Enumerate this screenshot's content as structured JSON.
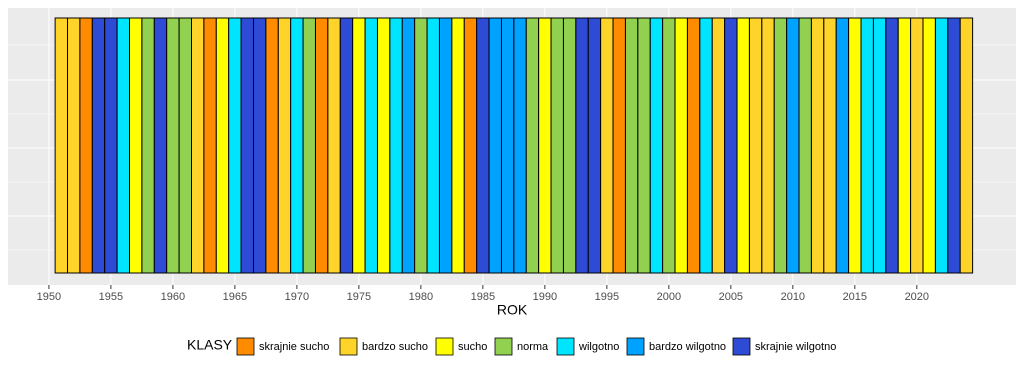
{
  "chart_data": {
    "type": "stripes",
    "xlabel": "ROK",
    "x": [
      1951,
      1952,
      1953,
      1954,
      1955,
      1956,
      1957,
      1958,
      1959,
      1960,
      1961,
      1962,
      1963,
      1964,
      1965,
      1966,
      1967,
      1968,
      1969,
      1970,
      1971,
      1972,
      1973,
      1974,
      1975,
      1976,
      1977,
      1978,
      1979,
      1980,
      1981,
      1982,
      1983,
      1984,
      1985,
      1986,
      1987,
      1988,
      1989,
      1990,
      1991,
      1992,
      1993,
      1994,
      1995,
      1996,
      1997,
      1998,
      1999,
      2000,
      2001,
      2002,
      2003,
      2004,
      2005,
      2006,
      2007,
      2008,
      2009,
      2010,
      2011,
      2012,
      2013,
      2014,
      2015,
      2016,
      2017,
      2018,
      2019,
      2020,
      2021,
      2022,
      2023,
      2024
    ],
    "classes": [
      "bardzo sucho",
      "bardzo sucho",
      "skrajnie sucho",
      "skrajnie wilgotno",
      "skrajnie wilgotno",
      "wilgotno",
      "sucho",
      "norma",
      "skrajnie wilgotno",
      "norma",
      "norma",
      "bardzo sucho",
      "skrajnie sucho",
      "sucho",
      "wilgotno",
      "skrajnie wilgotno",
      "skrajnie wilgotno",
      "skrajnie sucho",
      "bardzo sucho",
      "wilgotno",
      "norma",
      "skrajnie sucho",
      "bardzo sucho",
      "skrajnie wilgotno",
      "sucho",
      "wilgotno",
      "sucho",
      "wilgotno",
      "bardzo wilgotno",
      "norma",
      "wilgotno",
      "bardzo wilgotno",
      "sucho",
      "skrajnie sucho",
      "skrajnie wilgotno",
      "bardzo wilgotno",
      "bardzo wilgotno",
      "bardzo wilgotno",
      "norma",
      "sucho",
      "norma",
      "norma",
      "skrajnie wilgotno",
      "skrajnie wilgotno",
      "bardzo sucho",
      "skrajnie sucho",
      "norma",
      "norma",
      "wilgotno",
      "norma",
      "sucho",
      "skrajnie sucho",
      "wilgotno",
      "bardzo sucho",
      "skrajnie wilgotno",
      "sucho",
      "bardzo sucho",
      "bardzo sucho",
      "norma",
      "bardzo wilgotno",
      "norma",
      "bardzo sucho",
      "bardzo sucho",
      "bardzo wilgotno",
      "sucho",
      "wilgotno",
      "wilgotno",
      "skrajnie wilgotno",
      "sucho",
      "bardzo sucho",
      "sucho",
      "wilgotno",
      "skrajnie wilgotno",
      "bardzo sucho"
    ],
    "xlim": [
      1946.7,
      2028
    ],
    "xticks": [
      1950,
      1955,
      1960,
      1965,
      1970,
      1975,
      1980,
      1985,
      1990,
      1995,
      2000,
      2005,
      2010,
      2015,
      2020
    ],
    "grid": true,
    "legend": {
      "title": "KLASY",
      "position": "bottom",
      "items": [
        {
          "name": "skrajnie sucho",
          "color": "#ff8c00"
        },
        {
          "name": "bardzo sucho",
          "color": "#ffd42a"
        },
        {
          "name": "sucho",
          "color": "#ffff00"
        },
        {
          "name": "norma",
          "color": "#92d050"
        },
        {
          "name": "wilgotno",
          "color": "#00e5ff"
        },
        {
          "name": "bardzo wilgotno",
          "color": "#00a2ff"
        },
        {
          "name": "skrajnie wilgotno",
          "color": "#2e4bd6"
        }
      ]
    }
  }
}
